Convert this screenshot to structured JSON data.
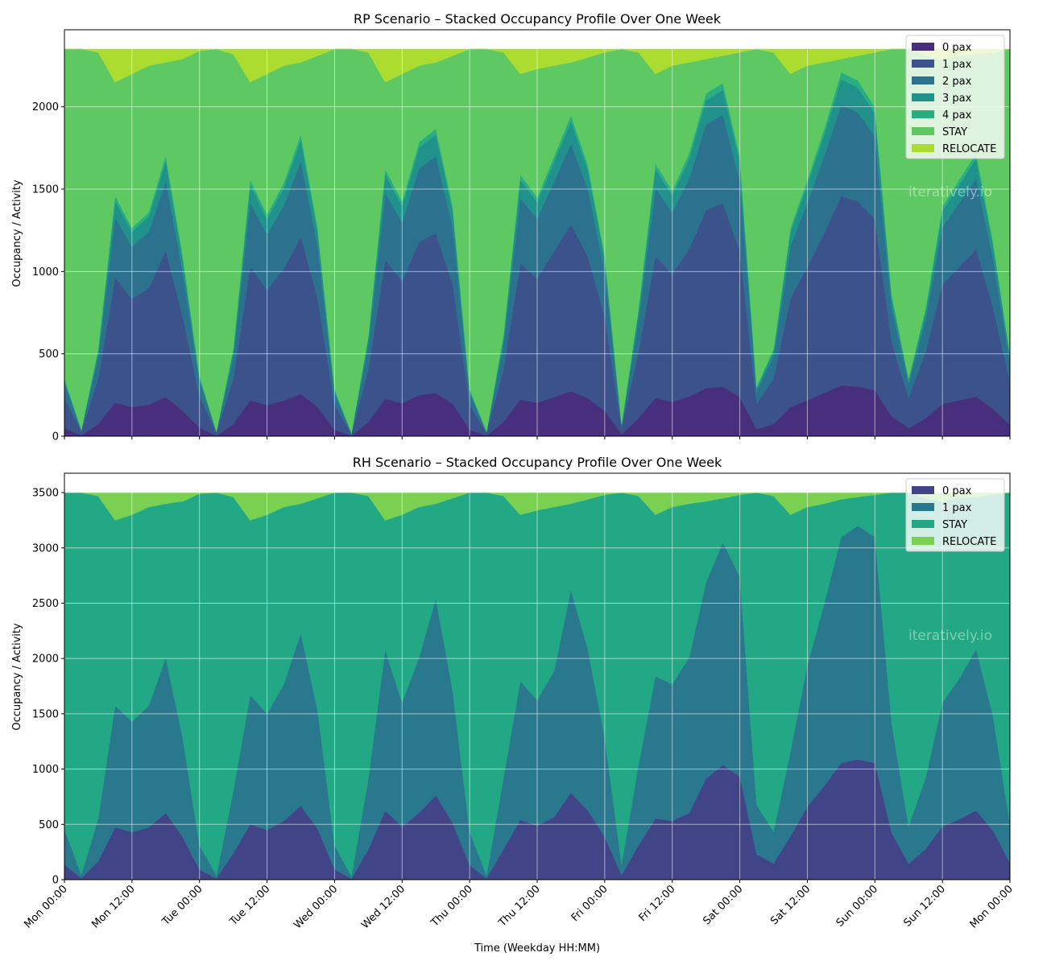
{
  "chart_data": [
    {
      "type": "area",
      "stacked": true,
      "title": "RP Scenario – Stacked Occupancy Profile Over One Week",
      "xlabel": "",
      "ylabel": "Occupancy / Activity",
      "ylim": [
        0,
        2467.5
      ],
      "yticks": [
        "0",
        "500",
        "1000",
        "1500",
        "2000"
      ],
      "ytick_values": [
        0,
        500,
        1000,
        1500,
        2000
      ],
      "grid": true,
      "legend_placement": "top-right",
      "watermark": "iteratively.io",
      "x": [
        "Mon 00:00",
        "Mon 03:00",
        "Mon 06:00",
        "Mon 09:00",
        "Mon 12:00",
        "Mon 15:00",
        "Mon 18:00",
        "Mon 21:00",
        "Tue 00:00",
        "Tue 03:00",
        "Tue 06:00",
        "Tue 09:00",
        "Tue 12:00",
        "Tue 15:00",
        "Tue 18:00",
        "Tue 21:00",
        "Wed 00:00",
        "Wed 03:00",
        "Wed 06:00",
        "Wed 09:00",
        "Wed 12:00",
        "Wed 15:00",
        "Wed 18:00",
        "Wed 21:00",
        "Thu 00:00",
        "Thu 03:00",
        "Thu 06:00",
        "Thu 09:00",
        "Thu 12:00",
        "Thu 15:00",
        "Thu 18:00",
        "Thu 21:00",
        "Fri 00:00",
        "Fri 03:00",
        "Fri 06:00",
        "Fri 09:00",
        "Fri 12:00",
        "Fri 15:00",
        "Fri 18:00",
        "Fri 21:00",
        "Sat 00:00",
        "Sat 03:00",
        "Sat 06:00",
        "Sat 09:00",
        "Sat 12:00",
        "Sat 15:00",
        "Sat 18:00",
        "Sat 21:00",
        "Sun 00:00",
        "Sun 03:00",
        "Sun 06:00",
        "Sun 09:00",
        "Sun 12:00",
        "Sun 15:00",
        "Sun 18:00",
        "Sun 21:00",
        "Mon 00:00"
      ],
      "series": [
        {
          "name": "0 pax",
          "color": "#472f7d",
          "values": [
            49,
            6,
            74,
            204,
            177,
            191,
            239,
            154,
            52,
            4,
            74,
            218,
            188,
            216,
            257,
            177,
            40,
            3,
            86,
            227,
            200,
            250,
            262,
            195,
            40,
            4,
            86,
            223,
            203,
            238,
            273,
            231,
            154,
            11,
            109,
            232,
            209,
            241,
            291,
            300,
            238,
            42,
            74,
            177,
            218,
            262,
            309,
            302,
            280,
            120,
            49,
            109,
            195,
            218,
            241,
            166,
            70
          ]
        },
        {
          "name": "1 pax",
          "color": "#3b528b",
          "values": [
            183,
            21,
            276,
            759,
            658,
            708,
            887,
            572,
            191,
            16,
            276,
            810,
            700,
            801,
            954,
            658,
            149,
            10,
            319,
            844,
            742,
            929,
            971,
            725,
            149,
            16,
            319,
            827,
            754,
            884,
            1014,
            858,
            572,
            39,
            404,
            861,
            776,
            894,
            1082,
            1115,
            884,
            156,
            277,
            658,
            810,
            971,
            1149,
            1123,
            1039,
            446,
            183,
            404,
            725,
            810,
            894,
            615,
            260
          ]
        },
        {
          "name": "2 pax",
          "color": "#2c728e",
          "values": [
            88,
            10,
            133,
            365,
            316,
            341,
            426,
            275,
            92,
            8,
            133,
            390,
            337,
            385,
            459,
            316,
            72,
            5,
            153,
            406,
            357,
            447,
            467,
            349,
            72,
            8,
            153,
            398,
            363,
            425,
            488,
            413,
            275,
            19,
            194,
            414,
            373,
            430,
            520,
            536,
            425,
            75,
            133,
            316,
            390,
            467,
            553,
            540,
            500,
            214,
            88,
            194,
            349,
            390,
            430,
            296,
            125
          ]
        },
        {
          "name": "3 pax",
          "color": "#21918c",
          "values": [
            25,
            3,
            37,
            102,
            89,
            95,
            119,
            77,
            26,
            2,
            37,
            109,
            94,
            108,
            128,
            89,
            20,
            2,
            43,
            114,
            100,
            125,
            131,
            98,
            20,
            2,
            43,
            111,
            102,
            119,
            137,
            116,
            77,
            5,
            54,
            116,
            104,
            120,
            146,
            150,
            119,
            21,
            37,
            89,
            109,
            131,
            155,
            151,
            140,
            60,
            25,
            54,
            98,
            109,
            120,
            83,
            35
          ]
        },
        {
          "name": "4 pax",
          "color": "#28ae80",
          "values": [
            7,
            0,
            11,
            30,
            25,
            27,
            34,
            22,
            7,
            0,
            11,
            31,
            27,
            31,
            37,
            25,
            6,
            0,
            12,
            32,
            28,
            35,
            37,
            28,
            6,
            0,
            12,
            31,
            28,
            34,
            38,
            32,
            22,
            1,
            15,
            33,
            30,
            35,
            41,
            44,
            34,
            6,
            11,
            25,
            31,
            37,
            44,
            44,
            39,
            17,
            7,
            15,
            28,
            31,
            35,
            23,
            10
          ]
        },
        {
          "name": "STAY",
          "color": "#5ec962",
          "values": [
            1998,
            2310,
            1799,
            690,
            935,
            888,
            565,
            1190,
            1972,
            2320,
            1789,
            592,
            854,
            709,
            435,
            1045,
            2063,
            2330,
            1717,
            527,
            773,
            464,
            402,
            915,
            2063,
            2320,
            1717,
            610,
            780,
            550,
            320,
            650,
            1230,
            2275,
            1554,
            544,
            758,
            550,
            210,
            165,
            630,
            2050,
            1798,
            935,
            692,
            402,
            80,
            150,
            332,
            1493,
            1998,
            1534,
            895,
            752,
            600,
            1147,
            1850
          ]
        },
        {
          "name": "RELOCATE",
          "color": "#addc30",
          "values": [
            0,
            0,
            20,
            200,
            150,
            100,
            80,
            60,
            10,
            0,
            30,
            200,
            150,
            100,
            80,
            40,
            0,
            0,
            20,
            200,
            150,
            100,
            80,
            40,
            0,
            0,
            20,
            150,
            120,
            100,
            80,
            50,
            20,
            0,
            20,
            150,
            100,
            80,
            60,
            40,
            20,
            0,
            20,
            150,
            100,
            80,
            60,
            40,
            20,
            0,
            0,
            40,
            60,
            40,
            30,
            20,
            0
          ]
        }
      ]
    },
    {
      "type": "area",
      "stacked": true,
      "title": "RH Scenario – Stacked Occupancy Profile Over One Week",
      "xlabel": "Time (Weekday HH:MM)",
      "ylabel": "Occupancy / Activity",
      "ylim": [
        0,
        3675
      ],
      "yticks": [
        "0",
        "500",
        "1000",
        "1500",
        "2000",
        "2500",
        "3000",
        "3500"
      ],
      "ytick_values": [
        0,
        500,
        1000,
        1500,
        2000,
        2500,
        3000,
        3500
      ],
      "xticks": [
        "Mon 00:00",
        "Mon 12:00",
        "Tue 00:00",
        "Tue 12:00",
        "Wed 00:00",
        "Wed 12:00",
        "Thu 00:00",
        "Thu 12:00",
        "Fri 00:00",
        "Fri 12:00",
        "Sat 00:00",
        "Sat 12:00",
        "Sun 00:00",
        "Sun 12:00",
        "Mon 00:00"
      ],
      "grid": true,
      "legend_placement": "top-right",
      "watermark": "iteratively.io",
      "series": [
        {
          "name": "0 pax",
          "color": "#414487",
          "values": [
            137,
            14,
            167,
            473,
            429,
            473,
            603,
            386,
            94,
            12,
            239,
            501,
            450,
            531,
            669,
            458,
            94,
            9,
            276,
            624,
            480,
            603,
            764,
            510,
            131,
            12,
            276,
            539,
            487,
            567,
            786,
            626,
            385,
            42,
            312,
            552,
            531,
            603,
            915,
            1037,
            932,
            230,
            148,
            394,
            660,
            849,
            1054,
            1088,
            1054,
            422,
            145,
            276,
            480,
            546,
            626,
            444,
            150
          ]
        },
        {
          "name": "1 pax",
          "color": "#2a788e",
          "values": [
            321,
            32,
            388,
            1102,
            1001,
            1102,
            1407,
            899,
            218,
            28,
            559,
            1169,
            1050,
            1239,
            1561,
            1067,
            218,
            21,
            644,
            1456,
            1120,
            1407,
            1781,
            1190,
            304,
            28,
            644,
            1256,
            1136,
            1323,
            1834,
            1459,
            898,
            98,
            728,
            1288,
            1239,
            1407,
            1775,
            2013,
            1808,
            447,
            287,
            766,
            1280,
            1647,
            2046,
            2112,
            2046,
            983,
            338,
            644,
            1120,
            1274,
            1459,
            1036,
            350
          ]
        },
        {
          "name": "STAY",
          "color": "#22a884",
          "values": [
            3042,
            3454,
            2915,
            1675,
            1870,
            1795,
            1390,
            2135,
            3178,
            3460,
            2662,
            1580,
            1800,
            1600,
            1170,
            1925,
            3188,
            3470,
            2550,
            1170,
            1700,
            1360,
            855,
            1750,
            3065,
            3460,
            2550,
            1505,
            1717,
            1480,
            780,
            1355,
            2197,
            3360,
            2430,
            1460,
            1600,
            1390,
            730,
            400,
            740,
            2823,
            3035,
            2140,
            1430,
            904,
            340,
            260,
            380,
            2095,
            3017,
            2530,
            1820,
            1630,
            1375,
            2000,
            3000
          ]
        },
        {
          "name": "RELOCATE",
          "color": "#7ad151",
          "values": [
            0,
            0,
            30,
            250,
            200,
            130,
            100,
            80,
            10,
            0,
            40,
            250,
            200,
            130,
            100,
            50,
            0,
            0,
            30,
            250,
            200,
            130,
            100,
            50,
            0,
            0,
            30,
            200,
            160,
            130,
            100,
            60,
            20,
            0,
            30,
            200,
            130,
            100,
            80,
            50,
            20,
            0,
            30,
            200,
            130,
            100,
            60,
            40,
            20,
            0,
            0,
            50,
            80,
            50,
            40,
            20,
            0
          ]
        }
      ]
    }
  ]
}
